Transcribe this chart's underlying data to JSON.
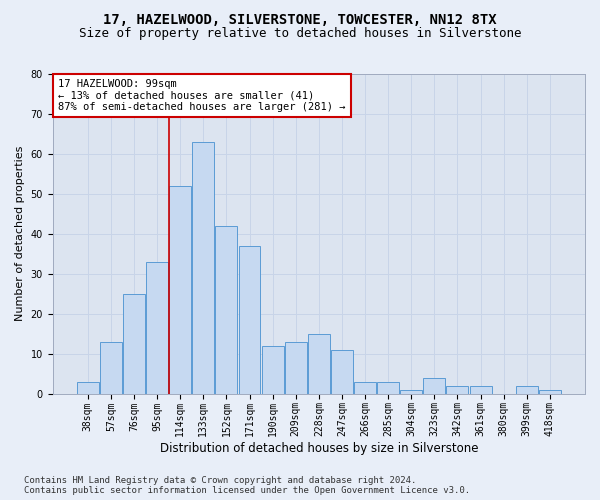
{
  "title": "17, HAZELWOOD, SILVERSTONE, TOWCESTER, NN12 8TX",
  "subtitle": "Size of property relative to detached houses in Silverstone",
  "xlabel": "Distribution of detached houses by size in Silverstone",
  "ylabel": "Number of detached properties",
  "categories": [
    "38sqm",
    "57sqm",
    "76sqm",
    "95sqm",
    "114sqm",
    "133sqm",
    "152sqm",
    "171sqm",
    "190sqm",
    "209sqm",
    "228sqm",
    "247sqm",
    "266sqm",
    "285sqm",
    "304sqm",
    "323sqm",
    "342sqm",
    "361sqm",
    "380sqm",
    "399sqm",
    "418sqm"
  ],
  "values": [
    3,
    13,
    25,
    33,
    52,
    63,
    42,
    37,
    12,
    13,
    15,
    11,
    3,
    3,
    1,
    4,
    2,
    2,
    0,
    2,
    1
  ],
  "bar_color": "#c6d9f1",
  "bar_edge_color": "#5b9bd5",
  "annotation_text_line1": "17 HAZELWOOD: 99sqm",
  "annotation_text_line2": "← 13% of detached houses are smaller (41)",
  "annotation_text_line3": "87% of semi-detached houses are larger (281) →",
  "annotation_box_facecolor": "#ffffff",
  "annotation_box_edgecolor": "#cc0000",
  "vline_color": "#cc0000",
  "ylim": [
    0,
    80
  ],
  "yticks": [
    0,
    10,
    20,
    30,
    40,
    50,
    60,
    70,
    80
  ],
  "grid_color": "#c8d4e8",
  "bg_color": "#e8eef8",
  "plot_bg_color": "#dce4f0",
  "footer_line1": "Contains HM Land Registry data © Crown copyright and database right 2024.",
  "footer_line2": "Contains public sector information licensed under the Open Government Licence v3.0.",
  "title_fontsize": 10,
  "subtitle_fontsize": 9,
  "xlabel_fontsize": 8.5,
  "ylabel_fontsize": 8,
  "tick_fontsize": 7,
  "annotation_fontsize": 7.5,
  "footer_fontsize": 6.5,
  "vline_x": 3.5
}
